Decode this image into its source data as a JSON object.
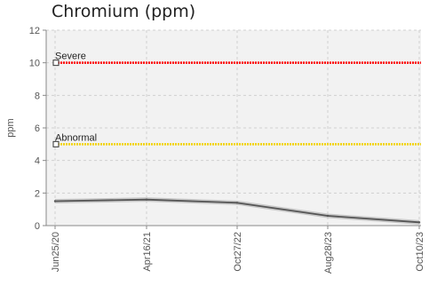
{
  "chart_data": {
    "type": "line",
    "title": "Chromium (ppm)",
    "ylabel": "ppm",
    "xlabel": "",
    "ylim": [
      0,
      12
    ],
    "yticks": [
      0,
      2,
      4,
      6,
      8,
      10,
      12
    ],
    "x_tick_labels": [
      "Jun25/20",
      "Apr16/21",
      "Oct27/22",
      "Aug28/23",
      "Oct10/23"
    ],
    "grid": true,
    "series": [
      {
        "values": [
          1.5,
          1.6,
          1.4,
          0.6,
          0.2
        ],
        "color": "#555555"
      }
    ],
    "reference_lines": [
      {
        "label": "Severe",
        "value": 10,
        "color": "#ff0000"
      },
      {
        "label": "Abnormal",
        "value": 5,
        "color": "#f2d200"
      }
    ]
  }
}
